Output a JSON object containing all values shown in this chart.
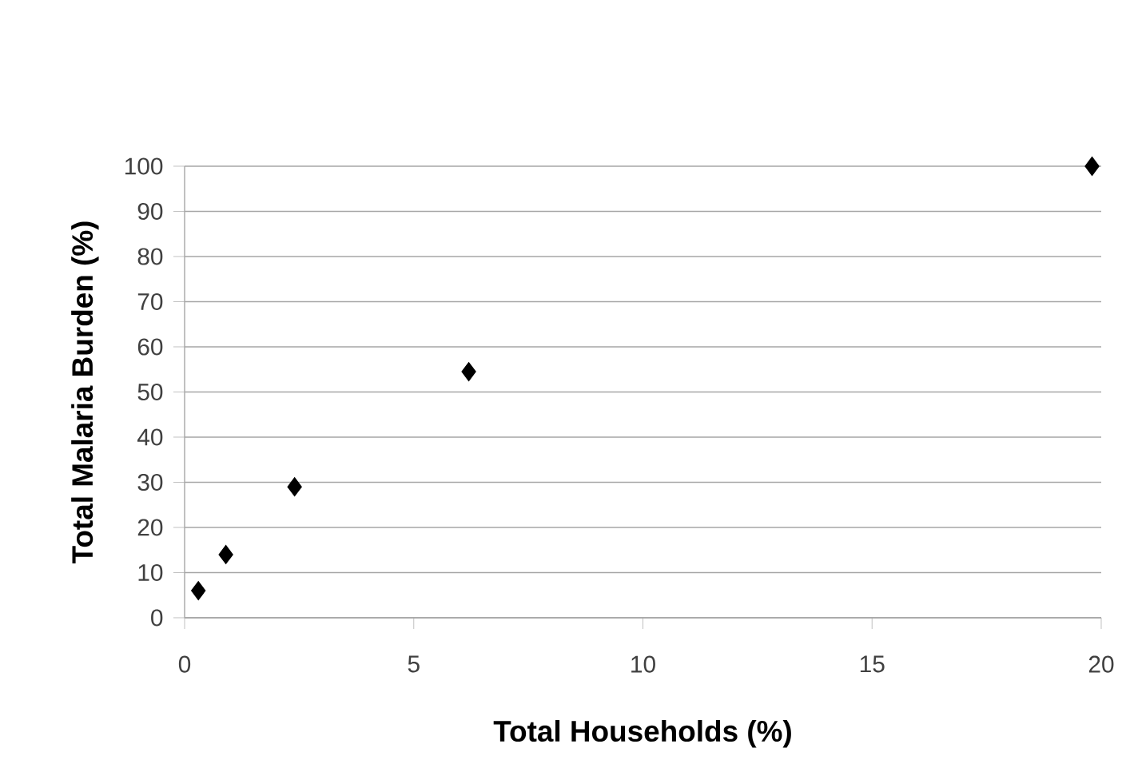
{
  "chart_data": {
    "type": "scatter",
    "xlabel": "Total Households (%)",
    "ylabel": "Total Malaria Burden (%)",
    "x": [
      0.3,
      0.9,
      2.4,
      6.2,
      19.8
    ],
    "series": [
      {
        "color": "#000000",
        "values": [
          6,
          14,
          29,
          54.5,
          100
        ]
      }
    ],
    "xlim": [
      0,
      20
    ],
    "xticks": [
      0,
      5,
      10,
      15,
      20
    ],
    "ylim": [
      0,
      100
    ],
    "yticks": [
      0,
      10,
      20,
      30,
      40,
      50,
      60,
      70,
      80,
      90,
      100
    ],
    "grid": "y",
    "marker": "diamond"
  }
}
